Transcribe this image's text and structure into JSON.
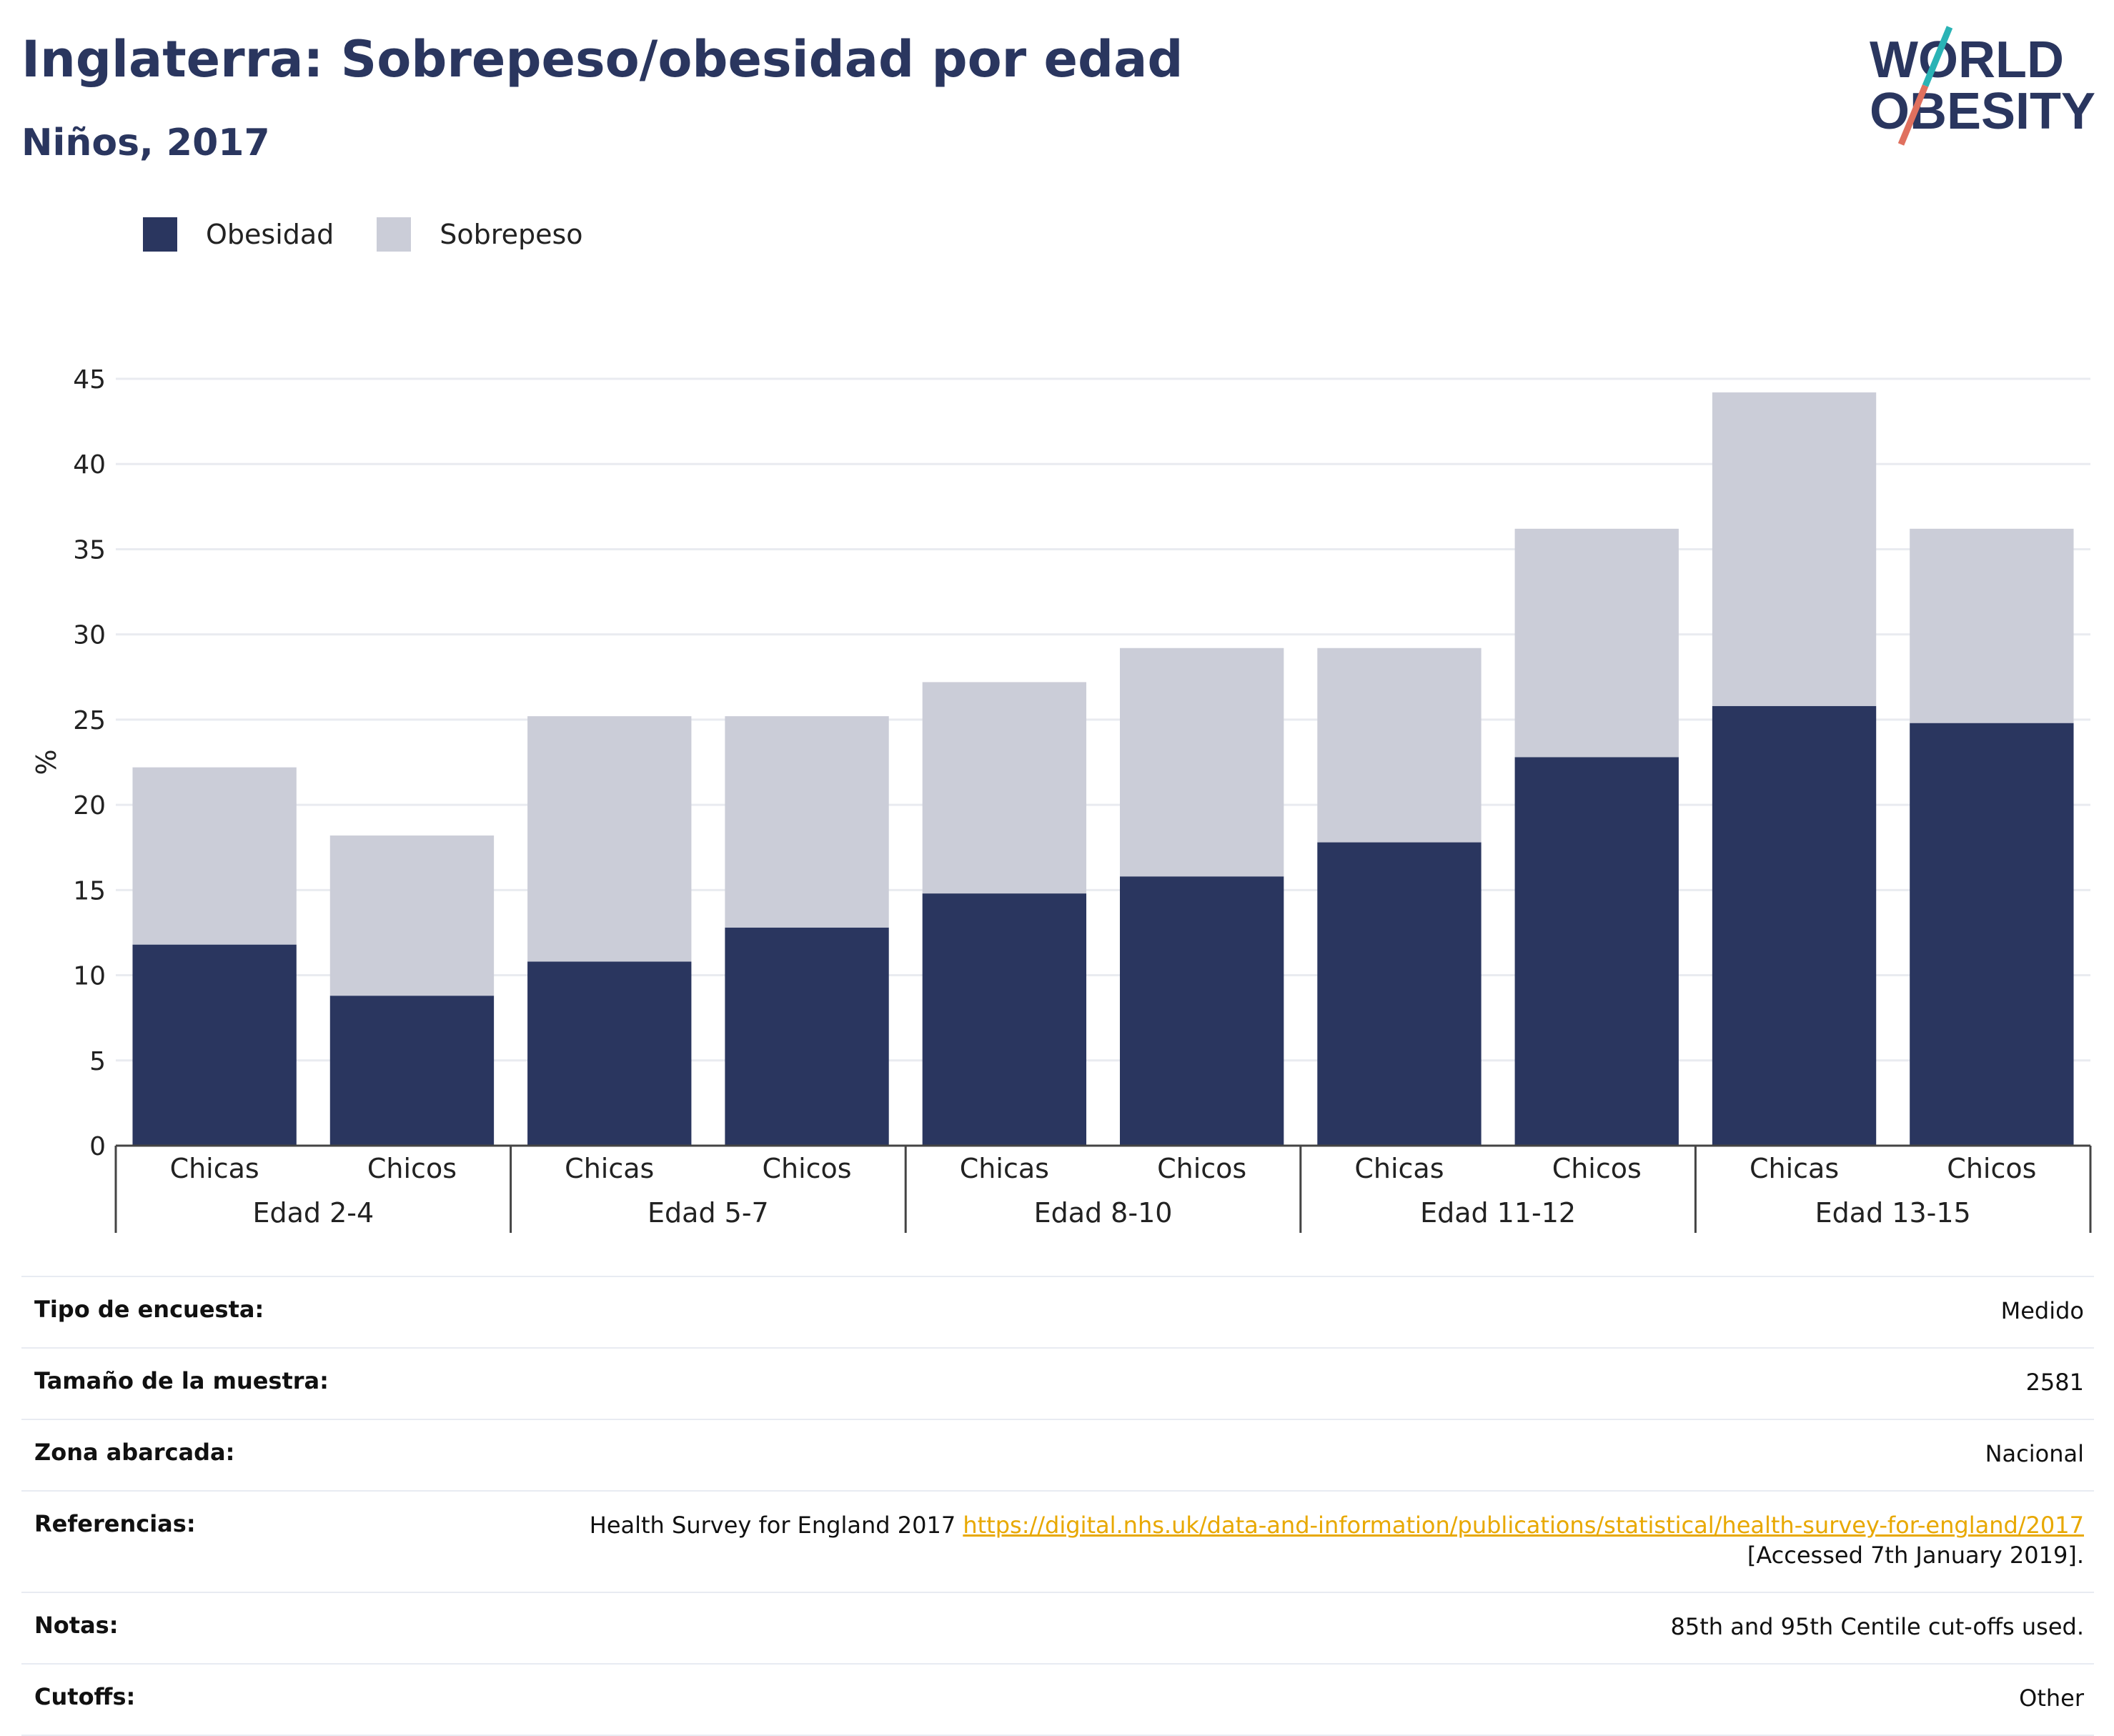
{
  "header": {
    "title": "Inglaterra: Sobrepeso/obesidad por edad",
    "subtitle": "Niños, 2017"
  },
  "logo": {
    "line1": "WORLD",
    "line2": "OBESITY"
  },
  "colors": {
    "obesity": "#2a365f",
    "overweight": "#cbcdd8",
    "accent_teal": "#2ab3b5",
    "accent_red": "#e0705e",
    "link": "#e8a800"
  },
  "chart_data": {
    "type": "bar",
    "stacked": true,
    "title": "Inglaterra: Sobrepeso/obesidad por edad",
    "subtitle": "Niños, 2017",
    "ylabel": "%",
    "ylim": [
      0,
      45
    ],
    "yticks": [
      0,
      5,
      10,
      15,
      20,
      25,
      30,
      35,
      40,
      45
    ],
    "grid": true,
    "legend_position": "top-left",
    "groups": [
      "Edad 2-4",
      "Edad 5-7",
      "Edad 8-10",
      "Edad 11-12",
      "Edad 13-15"
    ],
    "categories": [
      "Chicas",
      "Chicos",
      "Chicas",
      "Chicos",
      "Chicas",
      "Chicos",
      "Chicas",
      "Chicos",
      "Chicas",
      "Chicos"
    ],
    "series": [
      {
        "name": "Obesidad",
        "color": "#2a365f",
        "values": [
          11.8,
          8.8,
          10.8,
          12.8,
          14.8,
          15.8,
          17.8,
          22.8,
          25.8,
          24.8
        ]
      },
      {
        "name": "Sobrepeso",
        "color": "#cbcdd8",
        "values": [
          10.4,
          9.4,
          14.4,
          12.4,
          12.4,
          13.4,
          11.4,
          13.4,
          18.4,
          11.4
        ]
      }
    ]
  },
  "info": [
    {
      "key": "Tipo de encuesta:",
      "value": "Medido"
    },
    {
      "key": "Tamaño de la muestra:",
      "value": "2581"
    },
    {
      "key": "Zona abarcada:",
      "value": "Nacional"
    },
    {
      "key": "Referencias:",
      "value_prefix": "Health Survey for England 2017 ",
      "link": "https://digital.nhs.uk/data-and-information/publications/statistical/health-survey-for-england/2017",
      "value_suffix": "[Accessed 7th January 2019]."
    },
    {
      "key": "Notas:",
      "value": "85th and 95th Centile cut-offs used."
    },
    {
      "key": "Cutoffs:",
      "value": "Other"
    }
  ]
}
